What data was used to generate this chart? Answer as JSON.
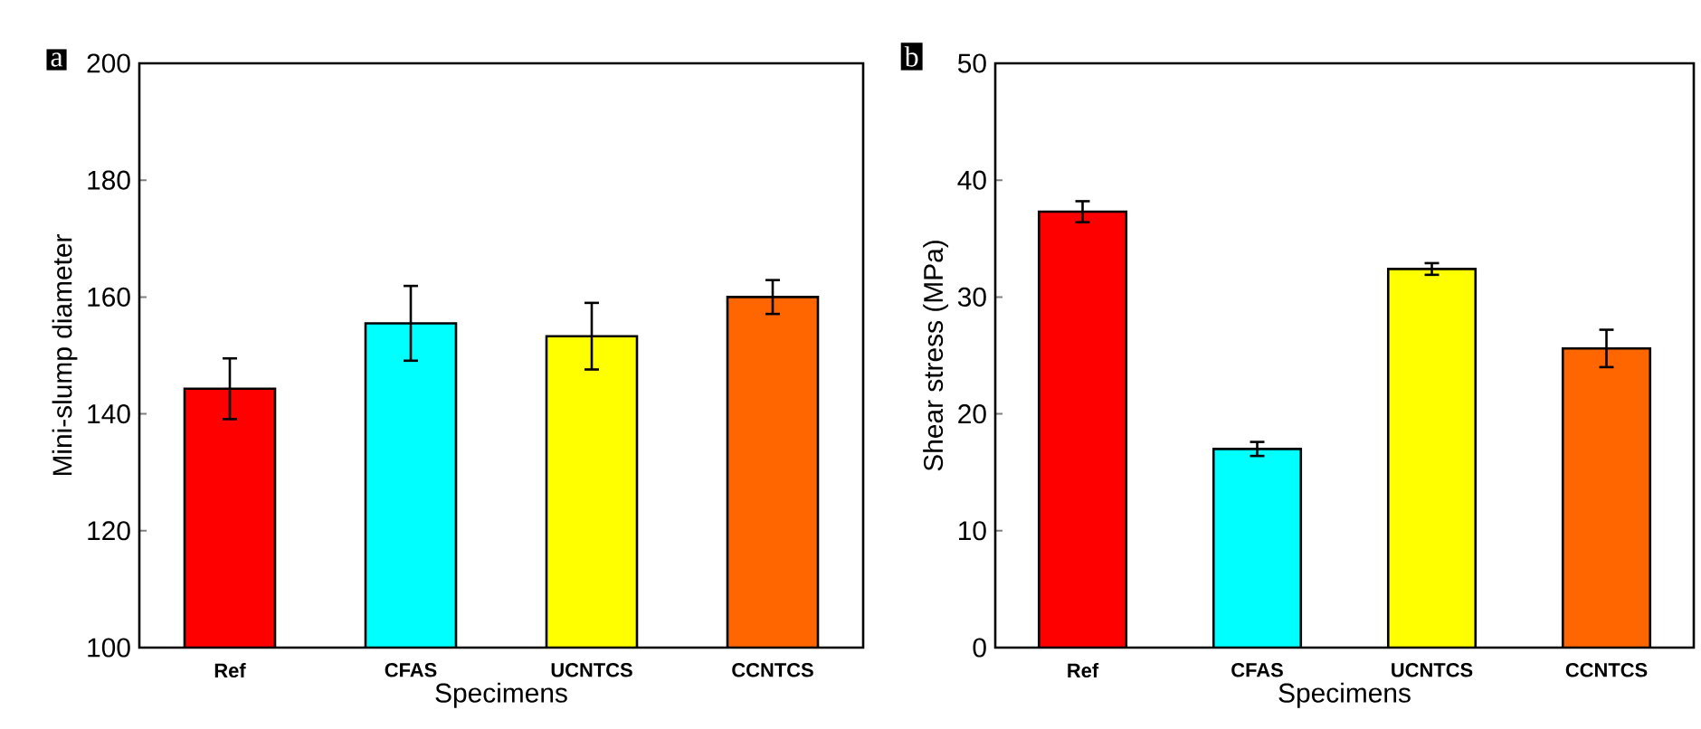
{
  "chart_data": [
    {
      "type": "bar",
      "title": "a",
      "xlabel": "Specimens",
      "ylabel": "Mini-slump diameter",
      "categories": [
        "Ref",
        "CFAS",
        "UCNTCS",
        "CCNTCS"
      ],
      "values": [
        144.3,
        155.5,
        153.3,
        160.0
      ],
      "errors": [
        5.2,
        6.4,
        5.7,
        2.9
      ],
      "colors": [
        "#ff0000",
        "#00ffff",
        "#ffff00",
        "#ff6600"
      ],
      "ylim": [
        100,
        200
      ],
      "yticks": [
        100,
        120,
        140,
        160,
        180,
        200
      ]
    },
    {
      "type": "bar",
      "title": "b",
      "xlabel": "Specimens",
      "ylabel": "Shear stress (MPa)",
      "categories": [
        "Ref",
        "CFAS",
        "UCNTCS",
        "CCNTCS"
      ],
      "values": [
        37.3,
        17.0,
        32.4,
        25.6
      ],
      "errors": [
        0.9,
        0.6,
        0.5,
        1.6
      ],
      "colors": [
        "#ff0000",
        "#00ffff",
        "#ffff00",
        "#ff6600"
      ],
      "ylim": [
        0,
        50
      ],
      "yticks": [
        0,
        10,
        20,
        30,
        40,
        50
      ]
    }
  ]
}
